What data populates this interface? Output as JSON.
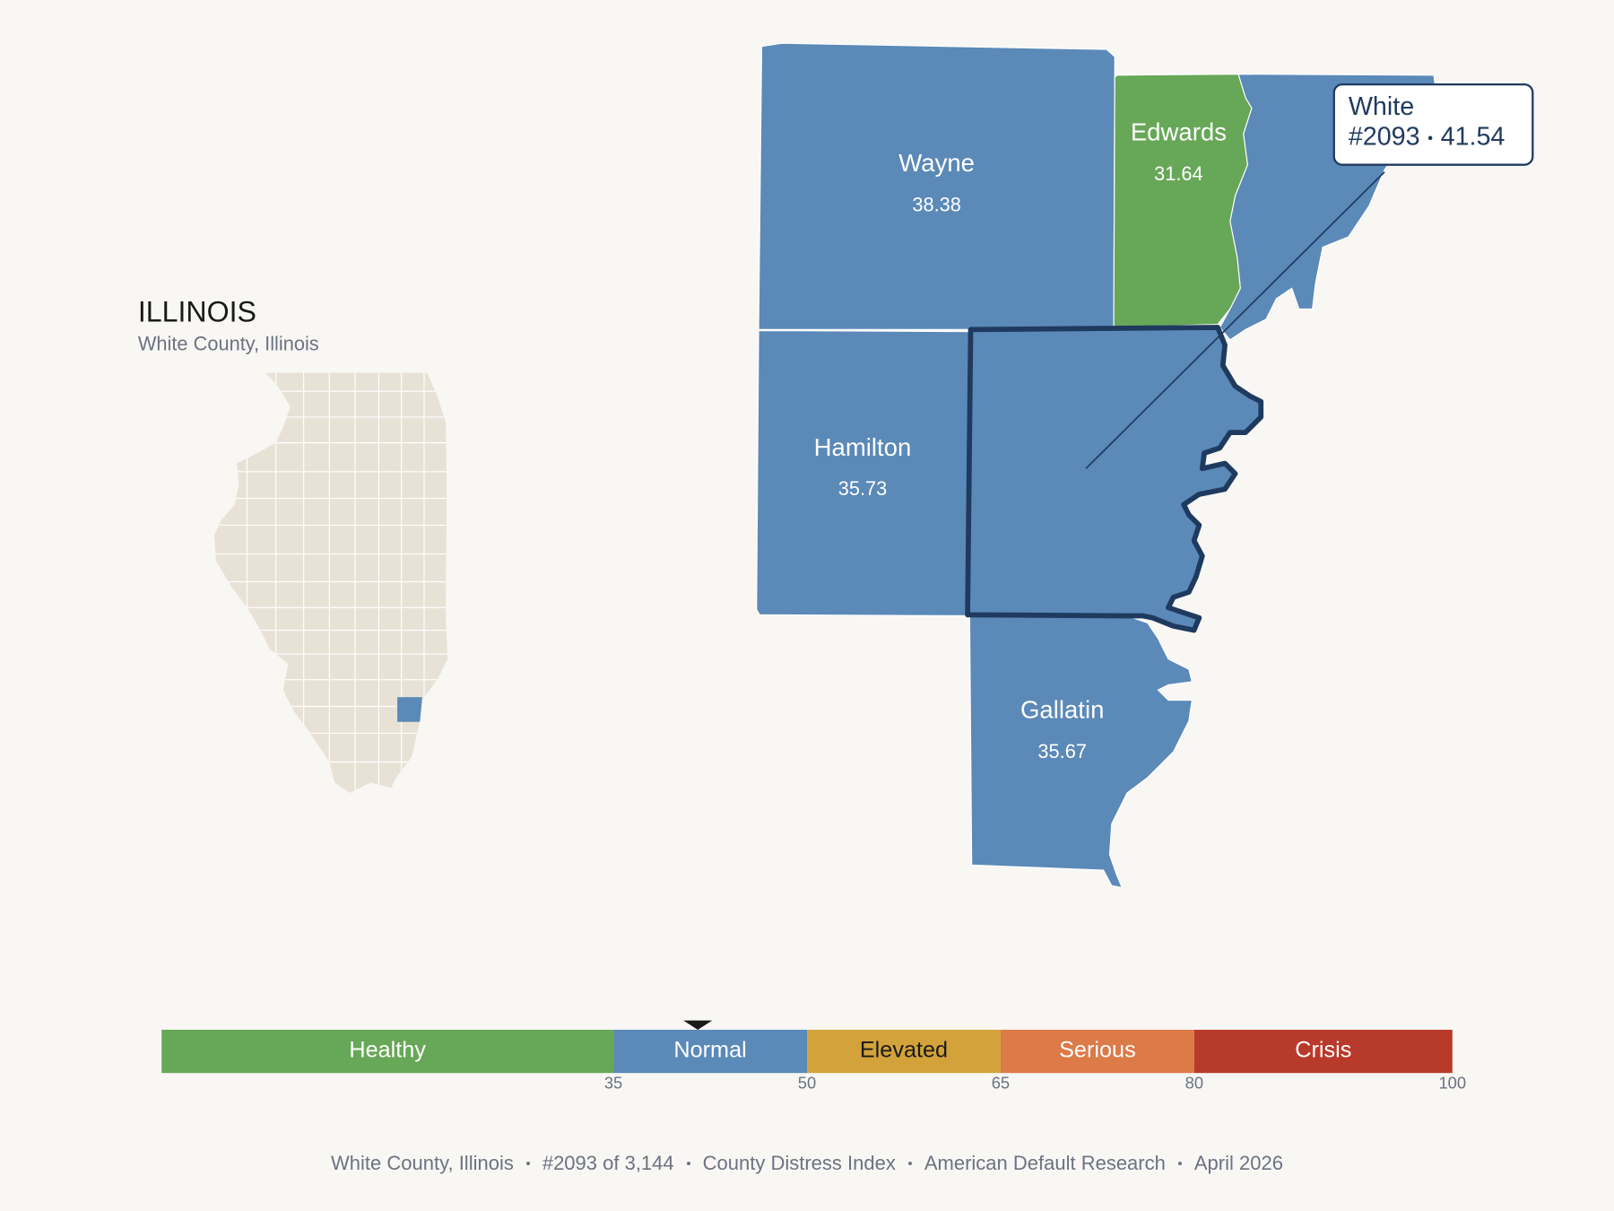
{
  "header": {
    "title": "ILLINOIS",
    "subtitle": "White County, Illinois"
  },
  "counties": [
    {
      "name": "Wayne",
      "score": 38.38
    },
    {
      "name": "Edwards",
      "score": 31.64
    },
    {
      "name": "Hamilton",
      "score": 35.73
    },
    {
      "name": "White",
      "score": 41.54
    },
    {
      "name": "Gallatin",
      "score": 35.67
    }
  ],
  "callout": {
    "name": "White",
    "rank": "#2093"
  },
  "legend": {
    "range": [
      0,
      100
    ],
    "ticks": [
      35,
      50,
      65,
      80,
      100
    ],
    "bands": [
      {
        "label": "Healthy",
        "to": 35,
        "color": "#67a758",
        "text_color": "#ffffff"
      },
      {
        "label": "Normal",
        "to": 50,
        "color": "#5b89b8",
        "text_color": "#ffffff"
      },
      {
        "label": "Elevated",
        "to": 65,
        "color": "#d4a23a",
        "text_color": "#1a1a1a"
      },
      {
        "label": "Serious",
        "to": 80,
        "color": "#dc7a48",
        "text_color": "#ffffff"
      },
      {
        "label": "Crisis",
        "to": 100,
        "color": "#b83a2b",
        "text_color": "#ffffff"
      }
    ]
  },
  "footer": [
    "White County, Illinois",
    "#2093 of 3,144",
    "County Distress Index",
    "American Default Research",
    "April 2026"
  ]
}
